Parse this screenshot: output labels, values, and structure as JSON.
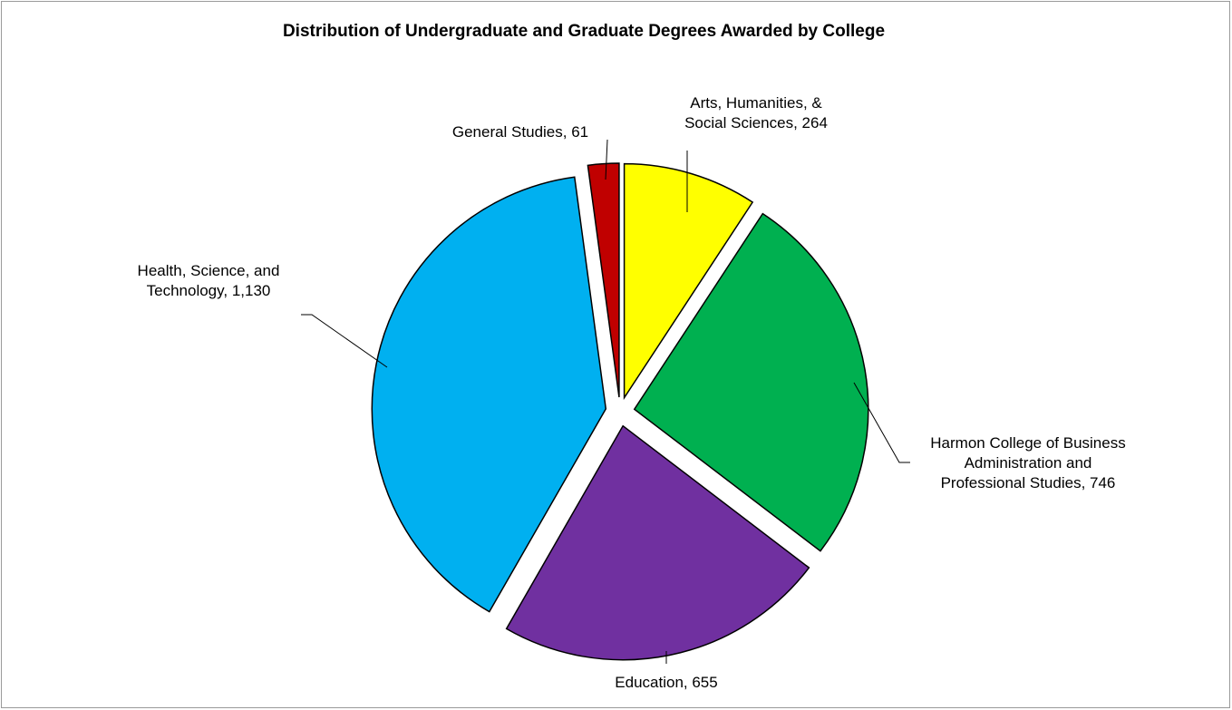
{
  "chart_data": {
    "type": "pie",
    "title": "Distribution of Undergraduate and Graduate Degrees Awarded by College",
    "slices": [
      {
        "label": "Arts, Humanities, & Social Sciences",
        "display_lines": [
          "Arts, Humanities, &",
          "Social Sciences, 264"
        ],
        "value": 264,
        "color": "#ffff00"
      },
      {
        "label": "Harmon College of Business Administration and Professional Studies",
        "display_lines": [
          "Harmon College of Business",
          "Administration and",
          "Professional Studies, 746"
        ],
        "value": 746,
        "color": "#00b050"
      },
      {
        "label": "Education",
        "display_lines": [
          "Education, 655"
        ],
        "value": 655,
        "color": "#7030a0"
      },
      {
        "label": "Health, Science, and Technology",
        "display_lines": [
          "Health, Science, and",
          "Technology, 1,130"
        ],
        "value": 1130,
        "color": "#00b0f0"
      },
      {
        "label": "General Studies",
        "display_lines": [
          "General Studies, 61"
        ],
        "value": 61,
        "color": "#c00000"
      }
    ],
    "data_labels": "category-name-and-value",
    "legend": "none",
    "exploded": true
  }
}
